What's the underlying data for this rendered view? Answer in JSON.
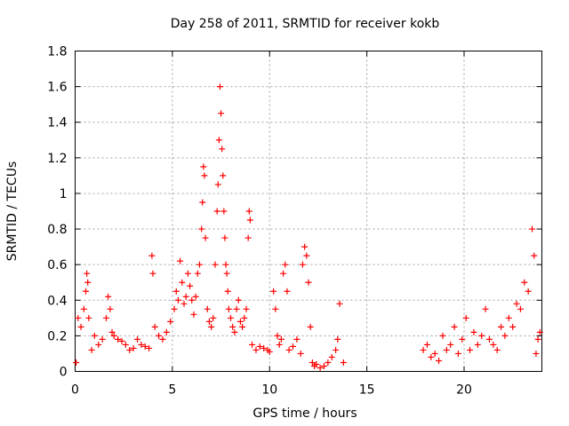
{
  "chart_data": {
    "type": "scatter",
    "title": "Day 258 of 2011, SRMTID for receiver kokb",
    "xlabel": "GPS time / hours",
    "ylabel": "SRMTID / TECUs",
    "xlim": [
      0,
      24
    ],
    "ylim": [
      0,
      1.8
    ],
    "xticks": [
      0,
      5,
      10,
      15,
      20
    ],
    "xtick_labels": [
      "0",
      "5",
      "10",
      "15",
      "20"
    ],
    "yticks": [
      0,
      0.2,
      0.4,
      0.6,
      0.8,
      1,
      1.2,
      1.4,
      1.6,
      1.8
    ],
    "ytick_labels": [
      "0",
      "0.2",
      "0.4",
      "0.6",
      "0.8",
      "1",
      "1.2",
      "1.4",
      "1.6",
      "1.8"
    ],
    "grid": true,
    "marker": "plus",
    "series": [
      {
        "name": "SRMTID",
        "color": "#ff0000",
        "x": [
          0.05,
          0.15,
          0.3,
          0.45,
          0.55,
          0.6,
          0.65,
          0.7,
          0.85,
          1.0,
          1.2,
          1.4,
          1.6,
          1.7,
          1.8,
          1.9,
          2.0,
          2.2,
          2.4,
          2.6,
          2.8,
          3.0,
          3.2,
          3.4,
          3.6,
          3.8,
          3.95,
          4.0,
          4.1,
          4.3,
          4.5,
          4.7,
          4.9,
          5.1,
          5.2,
          5.3,
          5.4,
          5.5,
          5.6,
          5.7,
          5.8,
          5.9,
          6.0,
          6.1,
          6.2,
          6.3,
          6.4,
          6.5,
          6.55,
          6.6,
          6.65,
          6.7,
          6.8,
          6.9,
          7.0,
          7.1,
          7.2,
          7.3,
          7.35,
          7.4,
          7.45,
          7.5,
          7.55,
          7.6,
          7.65,
          7.7,
          7.75,
          7.8,
          7.85,
          7.9,
          8.0,
          8.1,
          8.2,
          8.3,
          8.4,
          8.5,
          8.6,
          8.7,
          8.8,
          8.9,
          8.95,
          9.0,
          9.1,
          9.3,
          9.5,
          9.7,
          9.9,
          10.0,
          10.2,
          10.3,
          10.4,
          10.5,
          10.6,
          10.7,
          10.8,
          10.9,
          11.0,
          11.2,
          11.4,
          11.6,
          11.7,
          11.8,
          11.9,
          12.0,
          12.1,
          12.2,
          12.3,
          12.4,
          12.6,
          12.8,
          13.0,
          13.2,
          13.4,
          13.5,
          13.6,
          13.8,
          17.9,
          18.1,
          18.3,
          18.5,
          18.7,
          18.9,
          19.1,
          19.3,
          19.5,
          19.7,
          19.9,
          20.1,
          20.3,
          20.5,
          20.7,
          20.9,
          21.1,
          21.3,
          21.5,
          21.7,
          21.9,
          22.1,
          22.3,
          22.5,
          22.7,
          22.9,
          23.1,
          23.3,
          23.5,
          23.6,
          23.7,
          23.8,
          23.9
        ],
        "y": [
          0.05,
          0.3,
          0.25,
          0.35,
          0.45,
          0.55,
          0.5,
          0.3,
          0.12,
          0.2,
          0.15,
          0.18,
          0.3,
          0.42,
          0.35,
          0.22,
          0.2,
          0.18,
          0.17,
          0.15,
          0.12,
          0.13,
          0.18,
          0.15,
          0.14,
          0.13,
          0.65,
          0.55,
          0.25,
          0.2,
          0.18,
          0.22,
          0.28,
          0.35,
          0.45,
          0.4,
          0.62,
          0.5,
          0.38,
          0.42,
          0.55,
          0.48,
          0.4,
          0.32,
          0.42,
          0.55,
          0.6,
          0.8,
          0.95,
          1.15,
          1.1,
          0.75,
          0.35,
          0.28,
          0.25,
          0.3,
          0.6,
          0.9,
          1.05,
          1.3,
          1.6,
          1.45,
          1.25,
          1.1,
          0.9,
          0.75,
          0.6,
          0.55,
          0.45,
          0.35,
          0.3,
          0.25,
          0.22,
          0.35,
          0.4,
          0.28,
          0.25,
          0.3,
          0.35,
          0.75,
          0.9,
          0.85,
          0.15,
          0.12,
          0.14,
          0.13,
          0.12,
          0.11,
          0.45,
          0.35,
          0.2,
          0.15,
          0.18,
          0.55,
          0.6,
          0.45,
          0.12,
          0.14,
          0.18,
          0.1,
          0.6,
          0.7,
          0.65,
          0.5,
          0.25,
          0.05,
          0.03,
          0.04,
          0.02,
          0.03,
          0.05,
          0.08,
          0.12,
          0.18,
          0.38,
          0.05,
          0.12,
          0.15,
          0.08,
          0.1,
          0.06,
          0.2,
          0.12,
          0.15,
          0.25,
          0.1,
          0.18,
          0.3,
          0.12,
          0.22,
          0.15,
          0.2,
          0.35,
          0.18,
          0.15,
          0.12,
          0.25,
          0.2,
          0.3,
          0.25,
          0.38,
          0.35,
          0.5,
          0.45,
          0.8,
          0.65,
          0.1,
          0.18,
          0.22
        ]
      }
    ]
  }
}
